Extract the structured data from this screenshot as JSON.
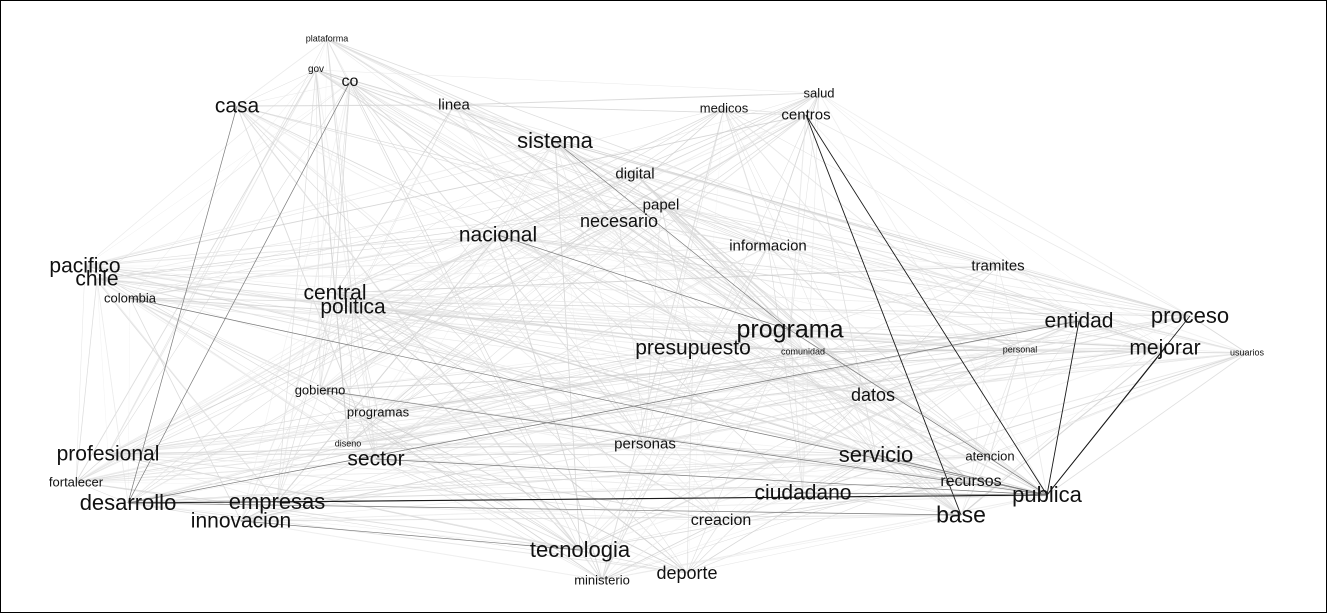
{
  "graph": {
    "type": "word-cooccurrence-network",
    "node_color": "#111111",
    "edge_color_light": "#cfcfcf",
    "edge_color_dark": "#1a1a1a",
    "nodes": [
      {
        "id": "plataforma",
        "label": "plataforma",
        "weight": 1
      },
      {
        "id": "gov",
        "label": "gov",
        "weight": 0
      },
      {
        "id": "co",
        "label": "co",
        "weight": 4
      },
      {
        "id": "casa",
        "label": "casa",
        "weight": 6
      },
      {
        "id": "linea",
        "label": "linea",
        "weight": 3
      },
      {
        "id": "salud",
        "label": "salud",
        "weight": 2
      },
      {
        "id": "medicos",
        "label": "medicos",
        "weight": 2
      },
      {
        "id": "centros",
        "label": "centros",
        "weight": 3
      },
      {
        "id": "sistema",
        "label": "sistema",
        "weight": 7
      },
      {
        "id": "digital",
        "label": "digital",
        "weight": 3
      },
      {
        "id": "papel",
        "label": "papel",
        "weight": 3
      },
      {
        "id": "necesario",
        "label": "necesario",
        "weight": 5
      },
      {
        "id": "nacional",
        "label": "nacional",
        "weight": 6
      },
      {
        "id": "informacion",
        "label": "informacion",
        "weight": 3
      },
      {
        "id": "tramites",
        "label": "tramites",
        "weight": 3
      },
      {
        "id": "pacifico",
        "label": "pacifico",
        "weight": 6
      },
      {
        "id": "chile",
        "label": "chile",
        "weight": 6
      },
      {
        "id": "colombia",
        "label": "colombia",
        "weight": 2
      },
      {
        "id": "central",
        "label": "central",
        "weight": 6
      },
      {
        "id": "politica",
        "label": "politica",
        "weight": 6
      },
      {
        "id": "programa",
        "label": "programa",
        "weight": 9
      },
      {
        "id": "presupuesto",
        "label": "presupuesto",
        "weight": 6
      },
      {
        "id": "comunidad",
        "label": "comunidad",
        "weight": 1
      },
      {
        "id": "entidad",
        "label": "entidad",
        "weight": 6
      },
      {
        "id": "proceso",
        "label": "proceso",
        "weight": 7
      },
      {
        "id": "mejorar",
        "label": "mejorar",
        "weight": 6
      },
      {
        "id": "personal",
        "label": "personal",
        "weight": 1
      },
      {
        "id": "usuarios",
        "label": "usuarios",
        "weight": 1
      },
      {
        "id": "gobierno",
        "label": "gobierno",
        "weight": 2
      },
      {
        "id": "datos",
        "label": "datos",
        "weight": 5
      },
      {
        "id": "programas",
        "label": "programas",
        "weight": 2
      },
      {
        "id": "diseno",
        "label": "diseno",
        "weight": 1
      },
      {
        "id": "profesional",
        "label": "profesional",
        "weight": 6
      },
      {
        "id": "sector",
        "label": "sector",
        "weight": 6
      },
      {
        "id": "personas",
        "label": "personas",
        "weight": 3
      },
      {
        "id": "servicio",
        "label": "servicio",
        "weight": 7
      },
      {
        "id": "atencion",
        "label": "atencion",
        "weight": 2
      },
      {
        "id": "fortalecer",
        "label": "fortalecer",
        "weight": 2
      },
      {
        "id": "desarrollo",
        "label": "desarrollo",
        "weight": 7
      },
      {
        "id": "empresas",
        "label": "empresas",
        "weight": 7
      },
      {
        "id": "innovacion",
        "label": "innovacion",
        "weight": 6
      },
      {
        "id": "ciudadano",
        "label": "ciudadano",
        "weight": 6
      },
      {
        "id": "recursos",
        "label": "recursos",
        "weight": 4
      },
      {
        "id": "publica",
        "label": "publica",
        "weight": 7
      },
      {
        "id": "base",
        "label": "base",
        "weight": 8
      },
      {
        "id": "creacion",
        "label": "creacion",
        "weight": 4
      },
      {
        "id": "tecnologia",
        "label": "tecnologia",
        "weight": 7
      },
      {
        "id": "deporte",
        "label": "deporte",
        "weight": 5
      },
      {
        "id": "ministerio",
        "label": "ministerio",
        "weight": 2
      }
    ],
    "edges": [
      [
        "centros",
        "publica",
        "dark"
      ],
      [
        "centros",
        "base",
        "dark"
      ],
      [
        "entidad",
        "publica",
        "dark"
      ],
      [
        "proceso",
        "publica",
        "dark"
      ],
      [
        "mejorar",
        "publica",
        "dark"
      ],
      [
        "desarrollo",
        "publica",
        "dark"
      ],
      [
        "empresas",
        "publica",
        "dark"
      ],
      [
        "sistema",
        "programa",
        "mid"
      ],
      [
        "co",
        "desarrollo",
        "mid"
      ],
      [
        "casa",
        "desarrollo",
        "mid"
      ],
      [
        "gobierno",
        "publica",
        "mid"
      ],
      [
        "desarrollo",
        "base",
        "mid"
      ],
      [
        "servicio",
        "publica",
        "mid"
      ],
      [
        "ciudadano",
        "publica",
        "mid"
      ],
      [
        "programa",
        "publica",
        "mid"
      ],
      [
        "sector",
        "publica",
        "mid"
      ],
      [
        "desarrollo",
        "entidad",
        "mid"
      ],
      [
        "innovacion",
        "tecnologia",
        "mid"
      ],
      [
        "nacional",
        "programa",
        "mid"
      ],
      [
        "colombia",
        "publica",
        "mid"
      ]
    ]
  }
}
